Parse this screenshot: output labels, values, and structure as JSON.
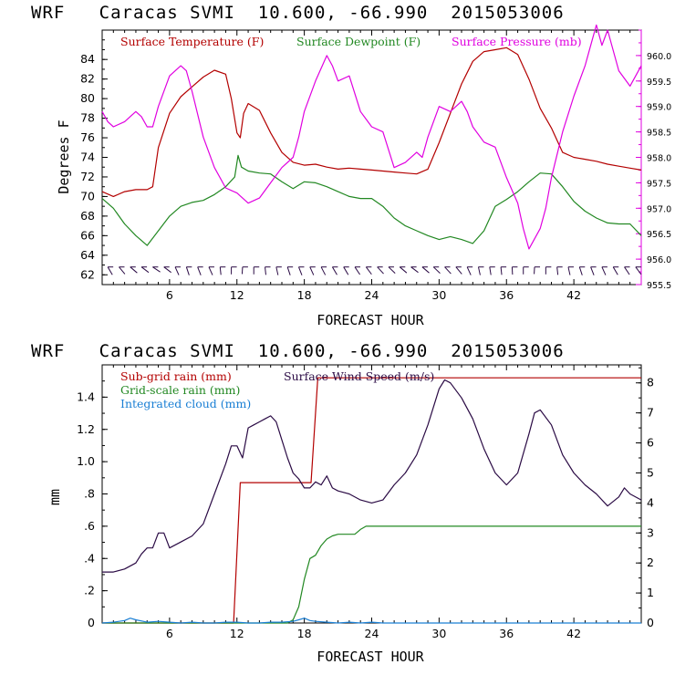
{
  "colors": {
    "temperature": "#b30000",
    "dewpoint": "#228822",
    "pressure": "#e000e0",
    "subgrid_rain": "#b30000",
    "gridscale_rain": "#228822",
    "cloud": "#1a7fd4",
    "wind": "#2a0a44",
    "axis": "#000000"
  },
  "chart_data": [
    {
      "type": "line",
      "title": "WRF   Caracas SVMI  10.600, -66.990  2015053006",
      "xlabel": "FORECAST HOUR",
      "ylabel": "Degrees F",
      "xlim": [
        0,
        48
      ],
      "ylim": [
        61,
        87
      ],
      "y2lim": [
        955.5,
        960.5
      ],
      "xticks": [
        6,
        12,
        18,
        24,
        30,
        36,
        42
      ],
      "xtick_labels": [
        "6",
        "12",
        "18",
        "24",
        "30",
        "36",
        "42"
      ],
      "yticks": [
        62,
        64,
        66,
        68,
        70,
        72,
        74,
        76,
        78,
        80,
        82,
        84
      ],
      "ytick_labels": [
        "62",
        "64",
        "66",
        "68",
        "70",
        "72",
        "74",
        "76",
        "78",
        "80",
        "82",
        "84"
      ],
      "y2ticks": [
        955.5,
        956.0,
        956.5,
        957.0,
        957.5,
        958.0,
        958.5,
        959.0,
        959.5,
        960.0
      ],
      "y2tick_labels": [
        "955.5",
        "956.0",
        "956.5",
        "957.0",
        "957.5",
        "958.0",
        "958.5",
        "959.0",
        "959.5",
        "960.0"
      ],
      "series": [
        {
          "name": "Surface Temperature (F)",
          "axis": "left",
          "color_key": "temperature",
          "x": [
            0,
            1,
            2,
            3,
            4,
            4.5,
            5,
            6,
            7,
            8,
            9,
            10,
            11,
            11.5,
            12,
            12.3,
            12.6,
            13,
            14,
            15,
            16,
            17,
            18,
            19,
            20,
            21,
            22,
            23,
            24,
            25,
            26,
            27,
            28,
            29,
            30,
            31,
            32,
            33,
            34,
            35,
            36,
            37,
            38,
            39,
            40,
            41,
            42,
            43,
            44,
            45,
            46,
            47,
            48
          ],
          "values": [
            70.5,
            70.0,
            70.5,
            70.7,
            70.7,
            71.0,
            75.0,
            78.5,
            80.2,
            81.2,
            82.2,
            82.9,
            82.5,
            80.0,
            76.5,
            76.0,
            78.5,
            79.5,
            78.8,
            76.5,
            74.5,
            73.5,
            73.2,
            73.3,
            73.0,
            72.8,
            72.9,
            72.8,
            72.7,
            72.6,
            72.5,
            72.4,
            72.3,
            72.8,
            75.5,
            78.5,
            81.5,
            83.8,
            84.8,
            85.0,
            85.2,
            84.5,
            82.0,
            79.0,
            77.0,
            74.5,
            74.0,
            73.8,
            73.6,
            73.3,
            73.1,
            72.9,
            72.7
          ]
        },
        {
          "name": "Surface Dewpoint (F)",
          "axis": "left",
          "color_key": "dewpoint",
          "x": [
            0,
            1,
            2,
            3,
            4,
            5,
            6,
            7,
            8,
            9,
            10,
            11,
            11.8,
            12.1,
            12.4,
            13,
            14,
            15,
            16,
            17,
            18,
            19,
            20,
            21,
            22,
            23,
            24,
            25,
            26,
            27,
            28,
            29,
            30,
            31,
            32,
            33,
            34,
            35,
            36,
            37,
            38,
            39,
            40,
            41,
            42,
            43,
            44,
            45,
            46,
            47,
            48
          ],
          "values": [
            69.8,
            68.8,
            67.2,
            66.0,
            65.0,
            66.5,
            68.0,
            69.0,
            69.4,
            69.6,
            70.2,
            71.0,
            72.0,
            74.2,
            73.0,
            72.6,
            72.4,
            72.3,
            71.5,
            70.8,
            71.5,
            71.4,
            71.0,
            70.5,
            70.0,
            69.8,
            69.8,
            69.0,
            67.8,
            67.0,
            66.5,
            66.0,
            65.6,
            65.9,
            65.6,
            65.2,
            66.5,
            69.0,
            69.7,
            70.5,
            71.5,
            72.4,
            72.3,
            71.0,
            69.5,
            68.5,
            67.8,
            67.3,
            67.2,
            67.2,
            66.0
          ]
        },
        {
          "name": "Surface Pressure (mb)",
          "axis": "right",
          "color_key": "pressure",
          "x": [
            0,
            0.5,
            1,
            2,
            3,
            3.5,
            4,
            4.5,
            5,
            6,
            7,
            7.5,
            8,
            9,
            10,
            11,
            12,
            13,
            14,
            15,
            16,
            17,
            17.5,
            18,
            19,
            20,
            20.5,
            21,
            22,
            23,
            24,
            25,
            26,
            27,
            28,
            28.5,
            29,
            30,
            31,
            32,
            32.5,
            33,
            34,
            35,
            36,
            37,
            37.5,
            38,
            39,
            39.5,
            40,
            41,
            42,
            43,
            43.5,
            44,
            44.5,
            45,
            46,
            47,
            48
          ],
          "values": [
            958.9,
            958.7,
            958.6,
            958.7,
            958.9,
            958.8,
            958.6,
            958.6,
            959.0,
            959.6,
            959.8,
            959.7,
            959.3,
            958.4,
            957.8,
            957.4,
            957.3,
            957.1,
            957.2,
            957.5,
            957.8,
            958.0,
            958.4,
            958.9,
            959.5,
            960.0,
            959.8,
            959.5,
            959.6,
            958.9,
            958.6,
            958.5,
            957.8,
            957.9,
            958.1,
            958.0,
            958.4,
            959.0,
            958.9,
            959.1,
            958.9,
            958.6,
            958.3,
            958.2,
            957.6,
            957.1,
            956.6,
            956.2,
            956.6,
            957.0,
            957.6,
            958.5,
            959.2,
            959.8,
            960.2,
            960.6,
            960.2,
            960.5,
            959.7,
            959.4,
            959.8
          ]
        },
        {
          "name": "Surface Wind (barbs)",
          "axis": "left",
          "color_key": "wind",
          "baseline_value": 62.8,
          "x": [
            0.5,
            1.5,
            2.5,
            3.5,
            4.5,
            5.5,
            6.5,
            7.5,
            8.5,
            9.5,
            10.5,
            11.5,
            12.5,
            13.5,
            14.5,
            15.5,
            16.5,
            17.5,
            18.5,
            19.5,
            20.5,
            21.5,
            22.5,
            23.5,
            24.5,
            25.5,
            26.5,
            27.5,
            28.5,
            29.5,
            30.5,
            31.5,
            32.5,
            33.5,
            34.5,
            35.5,
            36.5,
            37.5,
            38.5,
            39.5,
            40.5,
            41.5,
            42.5,
            43.5,
            44.5,
            45.5,
            46.5,
            47.5
          ],
          "angles_deg": [
            20,
            35,
            50,
            55,
            60,
            55,
            10,
            0,
            5,
            10,
            -20,
            -30,
            -35,
            -30,
            -20,
            -10,
            0,
            5,
            10,
            15,
            20,
            20,
            25,
            30,
            40,
            45,
            50,
            55,
            50,
            45,
            40,
            35,
            10,
            -10,
            -15,
            -20,
            -25,
            -30,
            -35,
            -30,
            -20,
            -10,
            0,
            5,
            10,
            20,
            25,
            30
          ]
        }
      ],
      "legend": [
        "Surface Temperature (F)",
        "Surface Dewpoint (F)",
        "Surface Pressure (mb)"
      ]
    },
    {
      "type": "line",
      "title": "WRF   Caracas SVMI  10.600, -66.990  2015053006",
      "xlabel": "FORECAST HOUR",
      "ylabel": "mm",
      "xlim": [
        0,
        48
      ],
      "ylim": [
        0,
        1.6
      ],
      "y2lim": [
        0,
        8.6
      ],
      "xticks": [
        6,
        12,
        18,
        24,
        30,
        36,
        42
      ],
      "xtick_labels": [
        "6",
        "12",
        "18",
        "24",
        "30",
        "36",
        "42"
      ],
      "yticks": [
        0,
        0.2,
        0.4,
        0.6,
        0.8,
        1.0,
        1.2,
        1.4
      ],
      "ytick_labels": [
        "0",
        ".2",
        ".4",
        ".6",
        ".8",
        "1.0",
        "1.2",
        "1.4"
      ],
      "y2ticks": [
        0,
        1,
        2,
        3,
        4,
        5,
        6,
        7,
        8
      ],
      "y2tick_labels": [
        "0",
        "1",
        "2",
        "3",
        "4",
        "5",
        "6",
        "7",
        "8"
      ],
      "series": [
        {
          "name": "Sub-grid rain (mm)",
          "axis": "left",
          "color_key": "subgrid_rain",
          "x": [
            0,
            11.7,
            12.3,
            18.6,
            19.2,
            48
          ],
          "values": [
            0,
            0,
            0.87,
            0.87,
            1.52,
            1.52
          ]
        },
        {
          "name": "Grid-scale rain (mm)",
          "axis": "left",
          "color_key": "gridscale_rain",
          "x": [
            0,
            16.5,
            17,
            17.5,
            18,
            18.5,
            19,
            19.5,
            20,
            20.5,
            21,
            21.5,
            22,
            22.5,
            23,
            23.5,
            24,
            48
          ],
          "values": [
            0,
            0,
            0.02,
            0.1,
            0.27,
            0.4,
            0.42,
            0.48,
            0.52,
            0.54,
            0.55,
            0.55,
            0.55,
            0.55,
            0.58,
            0.6,
            0.6,
            0.6
          ]
        },
        {
          "name": "Integrated cloud (mm)",
          "axis": "left",
          "color_key": "cloud",
          "x": [
            0,
            1,
            2,
            2.5,
            3,
            4,
            5,
            6,
            7,
            8,
            9,
            10,
            11,
            12,
            13,
            14,
            15,
            16,
            17,
            17.5,
            18,
            18.5,
            19,
            20,
            21,
            22,
            23,
            24,
            25,
            26,
            48
          ],
          "values": [
            0,
            0.005,
            0.015,
            0.03,
            0.02,
            0.005,
            0.01,
            0.005,
            0.0,
            0.005,
            0.0,
            0.0,
            0.005,
            0.005,
            0.0,
            0.0,
            0.005,
            0.005,
            0.01,
            0.02,
            0.03,
            0.015,
            0.01,
            0.005,
            0.0,
            0.005,
            0.0,
            0.005,
            0.0,
            0.0,
            0.0
          ]
        },
        {
          "name": "Surface Wind Speed (m/s)",
          "axis": "right",
          "color_key": "wind",
          "x": [
            0,
            1,
            2,
            3,
            3.5,
            4,
            4.5,
            5,
            5.5,
            6,
            7,
            8,
            9,
            10,
            11,
            11.5,
            12,
            12.5,
            13,
            13.5,
            14,
            14.5,
            15,
            15.5,
            16,
            16.5,
            17,
            17.5,
            18,
            18.5,
            19,
            19.5,
            20,
            20.5,
            21,
            22,
            23,
            24,
            25,
            26,
            27,
            28,
            29,
            30,
            30.5,
            31,
            32,
            33,
            34,
            35,
            36,
            37,
            38,
            38.5,
            39,
            40,
            41,
            42,
            43,
            44,
            45,
            46,
            46.5,
            47,
            48
          ],
          "values": [
            1.7,
            1.7,
            1.8,
            2.0,
            2.3,
            2.5,
            2.5,
            3.0,
            3.0,
            2.5,
            2.7,
            2.9,
            3.3,
            4.3,
            5.3,
            5.9,
            5.9,
            5.5,
            6.5,
            6.6,
            6.7,
            6.8,
            6.9,
            6.7,
            6.1,
            5.5,
            5.0,
            4.8,
            4.5,
            4.5,
            4.7,
            4.6,
            4.9,
            4.5,
            4.4,
            4.3,
            4.1,
            4.0,
            4.1,
            4.6,
            5.0,
            5.6,
            6.6,
            7.8,
            8.1,
            8.0,
            7.5,
            6.8,
            5.8,
            5.0,
            4.6,
            5.0,
            6.3,
            7.0,
            7.1,
            6.6,
            5.6,
            5.0,
            4.6,
            4.3,
            3.9,
            4.2,
            4.5,
            4.3,
            4.1
          ]
        }
      ],
      "legend": [
        "Sub-grid rain (mm)",
        "Surface Wind Speed (m/s)",
        "Grid-scale rain (mm)",
        "Integrated cloud (mm)"
      ]
    }
  ]
}
